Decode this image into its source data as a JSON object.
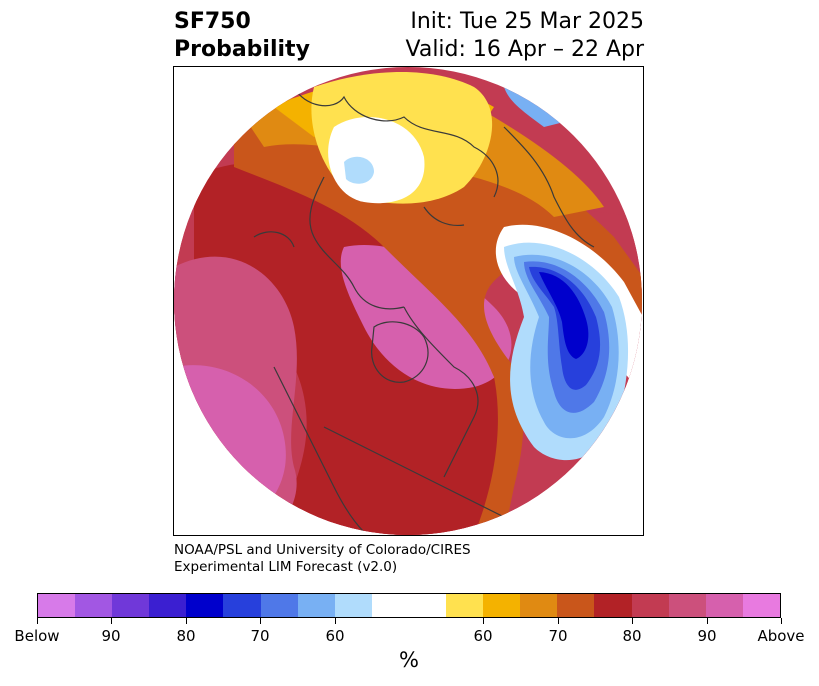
{
  "header": {
    "variable": "SF750",
    "product": "Probability",
    "init": "Init: Tue 25 Mar 2025",
    "valid": "Valid: 16 Apr – 22 Apr"
  },
  "credit": {
    "line1": "NOAA/PSL and University of Colorado/CIRES",
    "line2": "Experimental LIM Forecast (v2.0)"
  },
  "colorbar": {
    "unit": "%",
    "labels": [
      "Below",
      "90",
      "80",
      "70",
      "60",
      "60",
      "70",
      "80",
      "90",
      "Above"
    ],
    "colors": [
      "#d77ae9",
      "#a257e3",
      "#7038d9",
      "#3b1fd1",
      "#0000cc",
      "#2740dc",
      "#4f78e8",
      "#78b0f3",
      "#b0dcfc",
      "#ffffff",
      "#ffe14f",
      "#f4b200",
      "#e08a12",
      "#c9561b",
      "#b22226",
      "#c23b52",
      "#cc507c",
      "#d660ad",
      "#e87ae0"
    ]
  },
  "map": {
    "projection": "polar-stereographic",
    "colors": {
      "pink": "#d660ad",
      "rose": "#cc507c",
      "crimson": "#c23b52",
      "darkred": "#b22226",
      "rust": "#c9561b",
      "orange": "#e08a12",
      "amber": "#f4b200",
      "yellow": "#ffe14f",
      "lightblue": "#b0dcfc",
      "skyblue": "#78b0f3",
      "cornflower": "#4f78e8",
      "royalblue": "#2740dc",
      "blue": "#0000cc"
    }
  }
}
